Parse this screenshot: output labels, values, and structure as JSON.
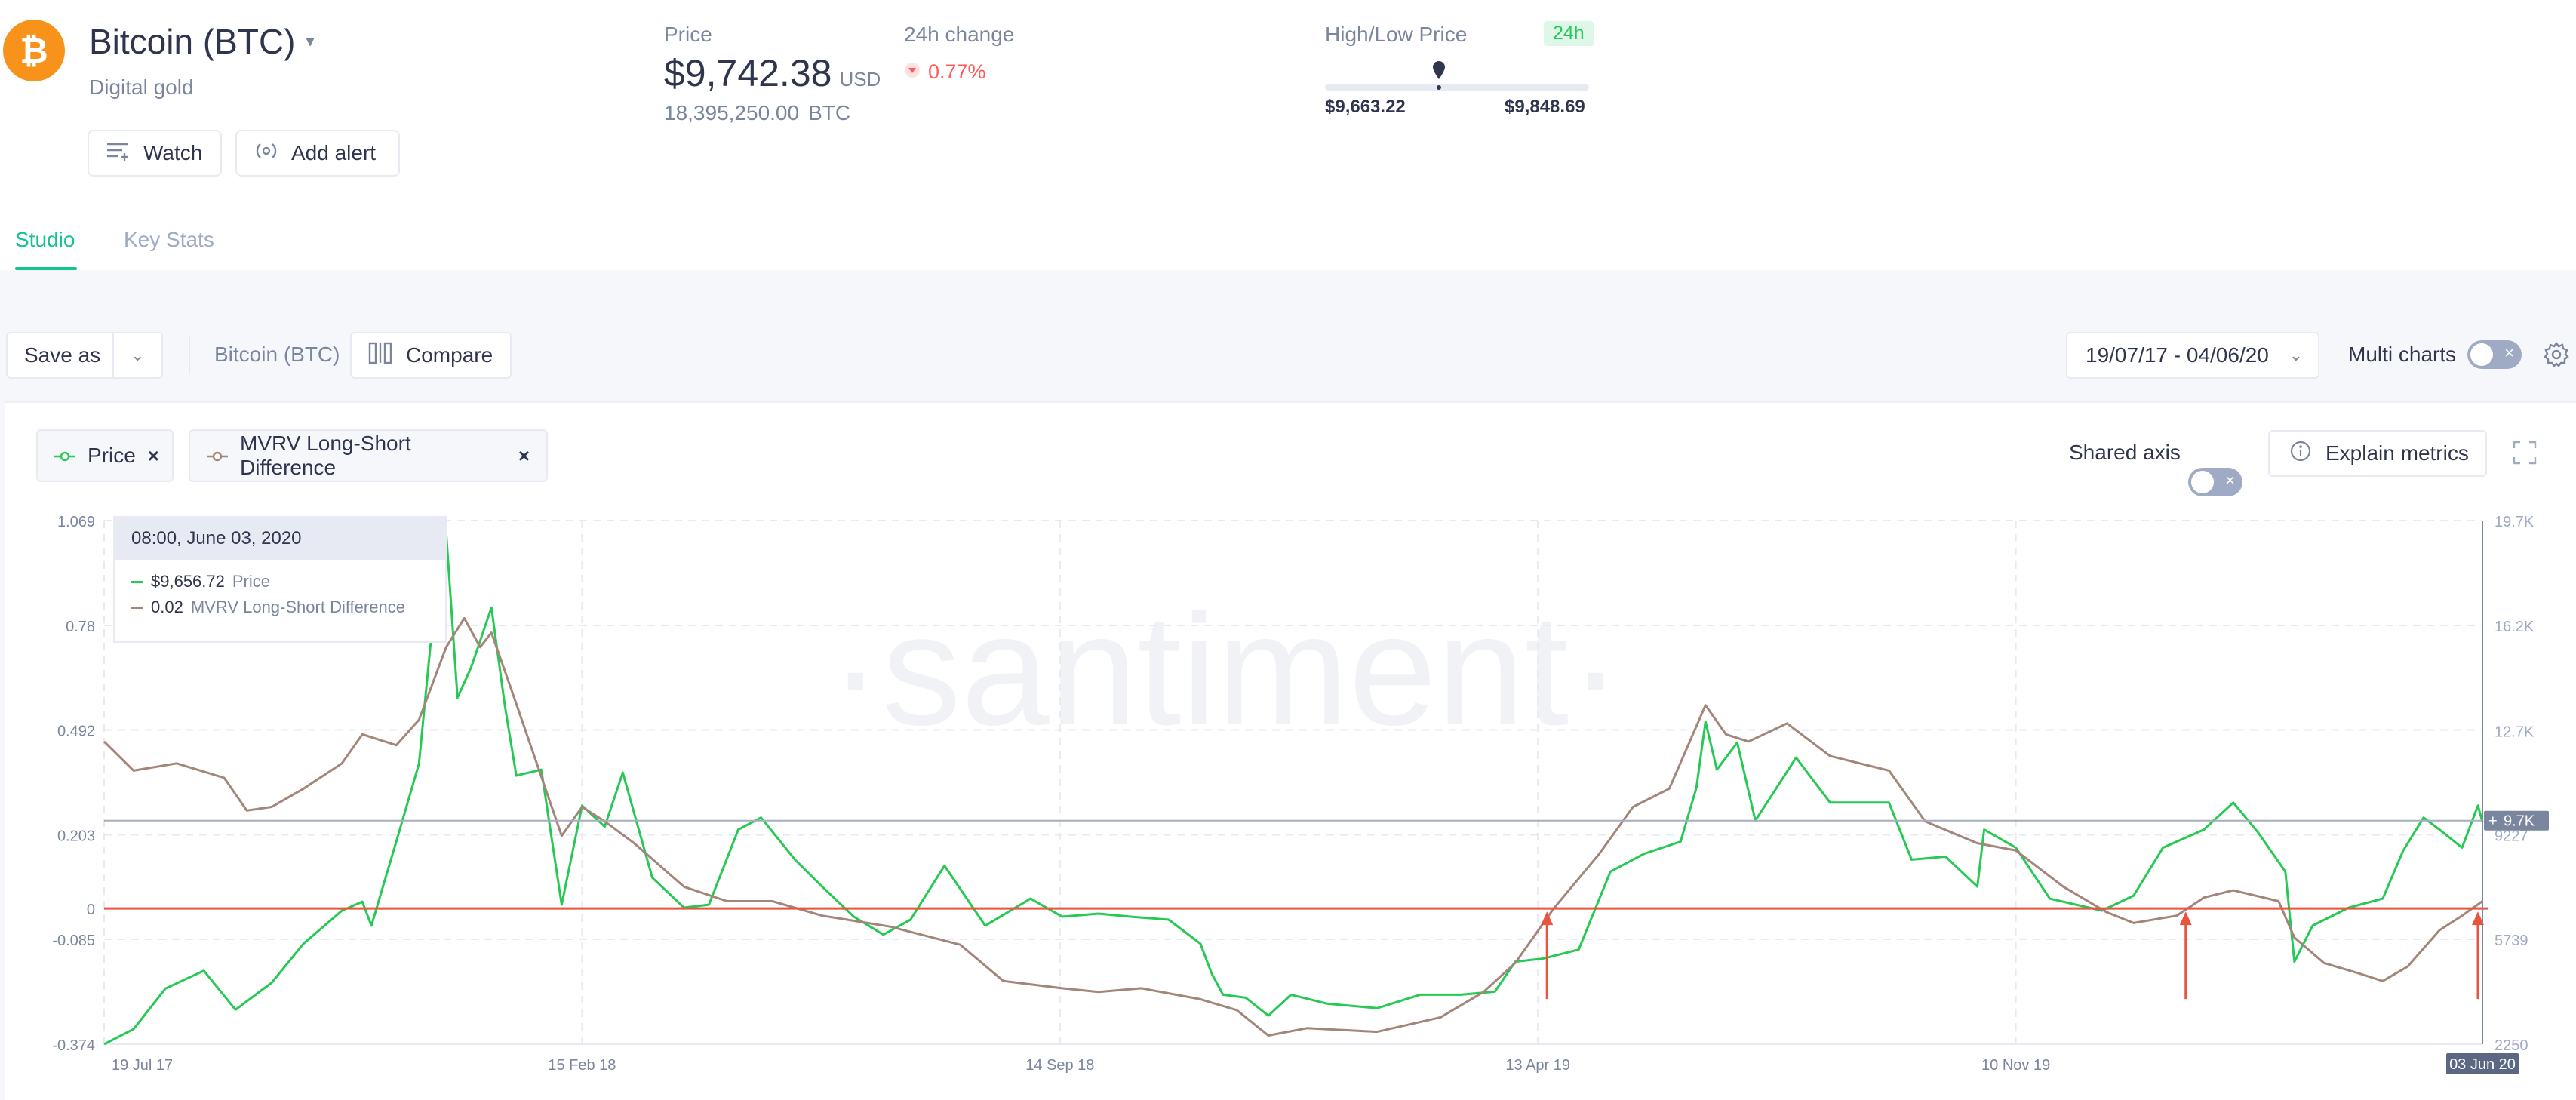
{
  "asset": {
    "name": "Bitcoin (BTC)",
    "subtitle": "Digital gold",
    "logo_glyph": "₿",
    "logo_color": "#f7931a",
    "watch_label": "Watch",
    "alert_label": "Add alert"
  },
  "price": {
    "label": "Price",
    "value": "$9,742.38",
    "unit": "USD",
    "supply": "18,395,250.00",
    "supply_unit": "BTC"
  },
  "change": {
    "label": "24h change",
    "value": "0.77%",
    "direction": "down"
  },
  "high_low": {
    "label": "High/Low Price",
    "period": "24h",
    "low": "$9,663.22",
    "high": "$9,848.69",
    "current_position": 0.43
  },
  "tabs": [
    {
      "label": "Studio",
      "active": true
    },
    {
      "label": "Key Stats",
      "active": false
    }
  ],
  "toolbar": {
    "save_label": "Save as",
    "asset_label": "Bitcoin (BTC)",
    "compare_label": "Compare",
    "date_range": "19/07/17 - 04/06/20",
    "multi_charts_label": "Multi charts",
    "multi_charts_on": false
  },
  "metrics_bar": {
    "metrics": [
      {
        "label": "Price",
        "color": "#26c953"
      },
      {
        "label": "MVRV Long-Short Difference",
        "color": "#a3857a"
      }
    ],
    "shared_axis_label": "Shared axis",
    "shared_axis_on": false,
    "explain_label": "Explain metrics"
  },
  "tooltip": {
    "date": "08:00, June 03, 2020",
    "rows": [
      {
        "value": "$9,656.72",
        "name": "Price",
        "color": "#26c953"
      },
      {
        "value": "0.02",
        "name": "MVRV Long-Short Difference",
        "color": "#a3857a"
      }
    ]
  },
  "chart_data": {
    "type": "line",
    "watermark": "·santiment·",
    "x_ticks": [
      "19 Jul 17",
      "15 Feb 18",
      "14 Sep 18",
      "13 Apr 19",
      "10 Nov 19"
    ],
    "x_last_label": "03 Jun 20",
    "left_axis_ticks": [
      "1.069",
      "0.78",
      "0.492",
      "0.203",
      "0",
      "-0.085",
      "-0.374"
    ],
    "right_axis_ticks": [
      "19.7K",
      "16.2K",
      "12.7K",
      "9227",
      "5739",
      "2250"
    ],
    "right_axis_marker": "9.7K",
    "left_ylim": [
      -0.374,
      1.069
    ],
    "right_ylim": [
      2250,
      19700
    ],
    "zero_line_value": 0,
    "annotations": [
      {
        "type": "up-arrow",
        "date": "2019-04-17"
      },
      {
        "type": "up-arrow",
        "date": "2020-01-24"
      },
      {
        "type": "up-arrow",
        "date": "2020-06-01"
      }
    ],
    "series": [
      {
        "name": "Price",
        "axis": "right",
        "color": "#26c953",
        "points": [
          [
            "2017-07-19",
            2250
          ],
          [
            "2017-08-01",
            2750
          ],
          [
            "2017-08-15",
            4100
          ],
          [
            "2017-09-01",
            4700
          ],
          [
            "2017-09-15",
            3400
          ],
          [
            "2017-10-01",
            4300
          ],
          [
            "2017-10-15",
            5600
          ],
          [
            "2017-11-01",
            6700
          ],
          [
            "2017-11-10",
            7000
          ],
          [
            "2017-11-14",
            6200
          ],
          [
            "2017-11-25",
            9000
          ],
          [
            "2017-12-05",
            11600
          ],
          [
            "2017-12-10",
            15500
          ],
          [
            "2017-12-17",
            19300
          ],
          [
            "2017-12-22",
            13800
          ],
          [
            "2017-12-28",
            14800
          ],
          [
            "2018-01-06",
            16800
          ],
          [
            "2018-01-12",
            13500
          ],
          [
            "2018-01-17",
            11200
          ],
          [
            "2018-01-28",
            11400
          ],
          [
            "2018-02-06",
            6900
          ],
          [
            "2018-02-15",
            10200
          ],
          [
            "2018-02-25",
            9500
          ],
          [
            "2018-03-05",
            11300
          ],
          [
            "2018-03-18",
            7800
          ],
          [
            "2018-04-01",
            6800
          ],
          [
            "2018-04-12",
            6900
          ],
          [
            "2018-04-25",
            9400
          ],
          [
            "2018-05-05",
            9800
          ],
          [
            "2018-05-20",
            8400
          ],
          [
            "2018-06-01",
            7500
          ],
          [
            "2018-06-15",
            6500
          ],
          [
            "2018-06-28",
            5900
          ],
          [
            "2018-07-10",
            6400
          ],
          [
            "2018-07-25",
            8200
          ],
          [
            "2018-08-12",
            6200
          ],
          [
            "2018-09-01",
            7100
          ],
          [
            "2018-09-15",
            6500
          ],
          [
            "2018-10-01",
            6600
          ],
          [
            "2018-10-15",
            6500
          ],
          [
            "2018-11-01",
            6400
          ],
          [
            "2018-11-15",
            5600
          ],
          [
            "2018-11-20",
            4600
          ],
          [
            "2018-11-25",
            3900
          ],
          [
            "2018-12-05",
            3800
          ],
          [
            "2018-12-15",
            3200
          ],
          [
            "2018-12-25",
            3900
          ],
          [
            "2019-01-10",
            3600
          ],
          [
            "2019-02-01",
            3450
          ],
          [
            "2019-02-20",
            3900
          ],
          [
            "2019-03-10",
            3900
          ],
          [
            "2019-03-25",
            4000
          ],
          [
            "2019-04-03",
            5000
          ],
          [
            "2019-04-15",
            5100
          ],
          [
            "2019-05-01",
            5400
          ],
          [
            "2019-05-15",
            8000
          ],
          [
            "2019-05-30",
            8600
          ],
          [
            "2019-06-15",
            9000
          ],
          [
            "2019-06-22",
            10800
          ],
          [
            "2019-06-26",
            13000
          ],
          [
            "2019-07-01",
            11400
          ],
          [
            "2019-07-10",
            12300
          ],
          [
            "2019-07-18",
            9700
          ],
          [
            "2019-08-05",
            11800
          ],
          [
            "2019-08-20",
            10300
          ],
          [
            "2019-09-15",
            10300
          ],
          [
            "2019-09-25",
            8400
          ],
          [
            "2019-10-10",
            8500
          ],
          [
            "2019-10-24",
            7500
          ],
          [
            "2019-10-27",
            9400
          ],
          [
            "2019-11-10",
            8800
          ],
          [
            "2019-11-25",
            7100
          ],
          [
            "2019-12-18",
            6700
          ],
          [
            "2020-01-01",
            7200
          ],
          [
            "2020-01-14",
            8800
          ],
          [
            "2020-02-01",
            9400
          ],
          [
            "2020-02-14",
            10300
          ],
          [
            "2020-02-25",
            9300
          ],
          [
            "2020-03-08",
            8000
          ],
          [
            "2020-03-12",
            5000
          ],
          [
            "2020-03-20",
            6200
          ],
          [
            "2020-04-05",
            6800
          ],
          [
            "2020-04-20",
            7100
          ],
          [
            "2020-04-29",
            8700
          ],
          [
            "2020-05-08",
            9800
          ],
          [
            "2020-05-15",
            9400
          ],
          [
            "2020-05-25",
            8800
          ],
          [
            "2020-06-01",
            10200
          ],
          [
            "2020-06-03",
            9657
          ]
        ]
      },
      {
        "name": "MVRV Long-Short Difference",
        "axis": "left",
        "color": "#a3857a",
        "points": [
          [
            "2017-07-19",
            0.46
          ],
          [
            "2017-08-01",
            0.38
          ],
          [
            "2017-08-20",
            0.4
          ],
          [
            "2017-09-10",
            0.36
          ],
          [
            "2017-09-20",
            0.27
          ],
          [
            "2017-10-01",
            0.28
          ],
          [
            "2017-10-15",
            0.33
          ],
          [
            "2017-11-01",
            0.4
          ],
          [
            "2017-11-10",
            0.48
          ],
          [
            "2017-11-25",
            0.45
          ],
          [
            "2017-12-05",
            0.52
          ],
          [
            "2017-12-17",
            0.72
          ],
          [
            "2017-12-25",
            0.8
          ],
          [
            "2018-01-01",
            0.72
          ],
          [
            "2018-01-06",
            0.76
          ],
          [
            "2018-01-15",
            0.6
          ],
          [
            "2018-02-06",
            0.2
          ],
          [
            "2018-02-15",
            0.28
          ],
          [
            "2018-02-25",
            0.24
          ],
          [
            "2018-03-10",
            0.18
          ],
          [
            "2018-04-01",
            0.06
          ],
          [
            "2018-04-20",
            0.02
          ],
          [
            "2018-05-10",
            0.02
          ],
          [
            "2018-06-01",
            -0.02
          ],
          [
            "2018-07-01",
            -0.05
          ],
          [
            "2018-08-01",
            -0.1
          ],
          [
            "2018-08-20",
            -0.2
          ],
          [
            "2018-09-15",
            -0.22
          ],
          [
            "2018-10-01",
            -0.23
          ],
          [
            "2018-10-20",
            -0.22
          ],
          [
            "2018-11-15",
            -0.25
          ],
          [
            "2018-12-01",
            -0.28
          ],
          [
            "2018-12-15",
            -0.35
          ],
          [
            "2019-01-01",
            -0.33
          ],
          [
            "2019-02-01",
            -0.34
          ],
          [
            "2019-03-01",
            -0.3
          ],
          [
            "2019-03-20",
            -0.23
          ],
          [
            "2019-04-03",
            -0.15
          ],
          [
            "2019-04-20",
            0.0
          ],
          [
            "2019-05-10",
            0.15
          ],
          [
            "2019-05-25",
            0.28
          ],
          [
            "2019-06-10",
            0.33
          ],
          [
            "2019-06-26",
            0.56
          ],
          [
            "2019-07-05",
            0.48
          ],
          [
            "2019-07-15",
            0.46
          ],
          [
            "2019-08-01",
            0.51
          ],
          [
            "2019-08-20",
            0.42
          ],
          [
            "2019-09-15",
            0.38
          ],
          [
            "2019-10-01",
            0.24
          ],
          [
            "2019-10-24",
            0.18
          ],
          [
            "2019-11-10",
            0.16
          ],
          [
            "2019-12-01",
            0.06
          ],
          [
            "2019-12-20",
            -0.01
          ],
          [
            "2020-01-01",
            -0.04
          ],
          [
            "2020-01-20",
            -0.02
          ],
          [
            "2020-02-01",
            0.03
          ],
          [
            "2020-02-14",
            0.05
          ],
          [
            "2020-03-05",
            0.02
          ],
          [
            "2020-03-12",
            -0.08
          ],
          [
            "2020-03-25",
            -0.15
          ],
          [
            "2020-04-10",
            -0.18
          ],
          [
            "2020-04-20",
            -0.2
          ],
          [
            "2020-05-01",
            -0.16
          ],
          [
            "2020-05-15",
            -0.06
          ],
          [
            "2020-05-25",
            -0.02
          ],
          [
            "2020-06-03",
            0.02
          ]
        ]
      }
    ]
  }
}
